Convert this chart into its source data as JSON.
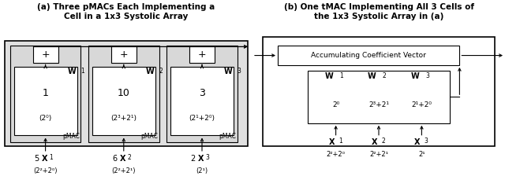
{
  "title_a": "(a) Three pMACs Each Implementing a\nCell in a 1x3 Systolic Array",
  "title_b": "(b) One tMAC Implementing All 3 Cells of\nthe 1x3 Systolic Array in (a)",
  "bg_color": "#e0e0e0",
  "white": "#ffffff",
  "black": "#000000",
  "pmac_labels": [
    "pMAC",
    "pMAC",
    "pMAC"
  ],
  "w_labels_bold": [
    "W",
    "W",
    "W"
  ],
  "w_subscripts": [
    "1",
    "2",
    "3"
  ],
  "w_values_main": [
    "1",
    "10",
    "3"
  ],
  "w_values_sub": [
    "(2⁰)",
    "(2³+2¹)",
    "(2¹+2⁰)"
  ],
  "x_labels": [
    "X",
    "X",
    "X"
  ],
  "x_subscripts": [
    "1",
    "2",
    "3"
  ],
  "x_values": [
    "5",
    "6",
    "2"
  ],
  "x_sub": [
    "(2²+2⁰)",
    "(2²+2¹)",
    "(2¹)"
  ],
  "acc_label": "Accumulating Coefficient Vector",
  "tmac_w_main": [
    "W",
    "W",
    "W"
  ],
  "tmac_w_subs": [
    "1",
    "2",
    "3"
  ],
  "tmac_w_vals": [
    "2⁰",
    "2³+2¹",
    "2¹+2⁰"
  ],
  "tmac_x_main": [
    "X",
    "X",
    "X"
  ],
  "tmac_x_subs": [
    "1",
    "2",
    "3"
  ],
  "tmac_x_sub": [
    "2²+2⁰",
    "2²+2¹",
    "2¹"
  ]
}
